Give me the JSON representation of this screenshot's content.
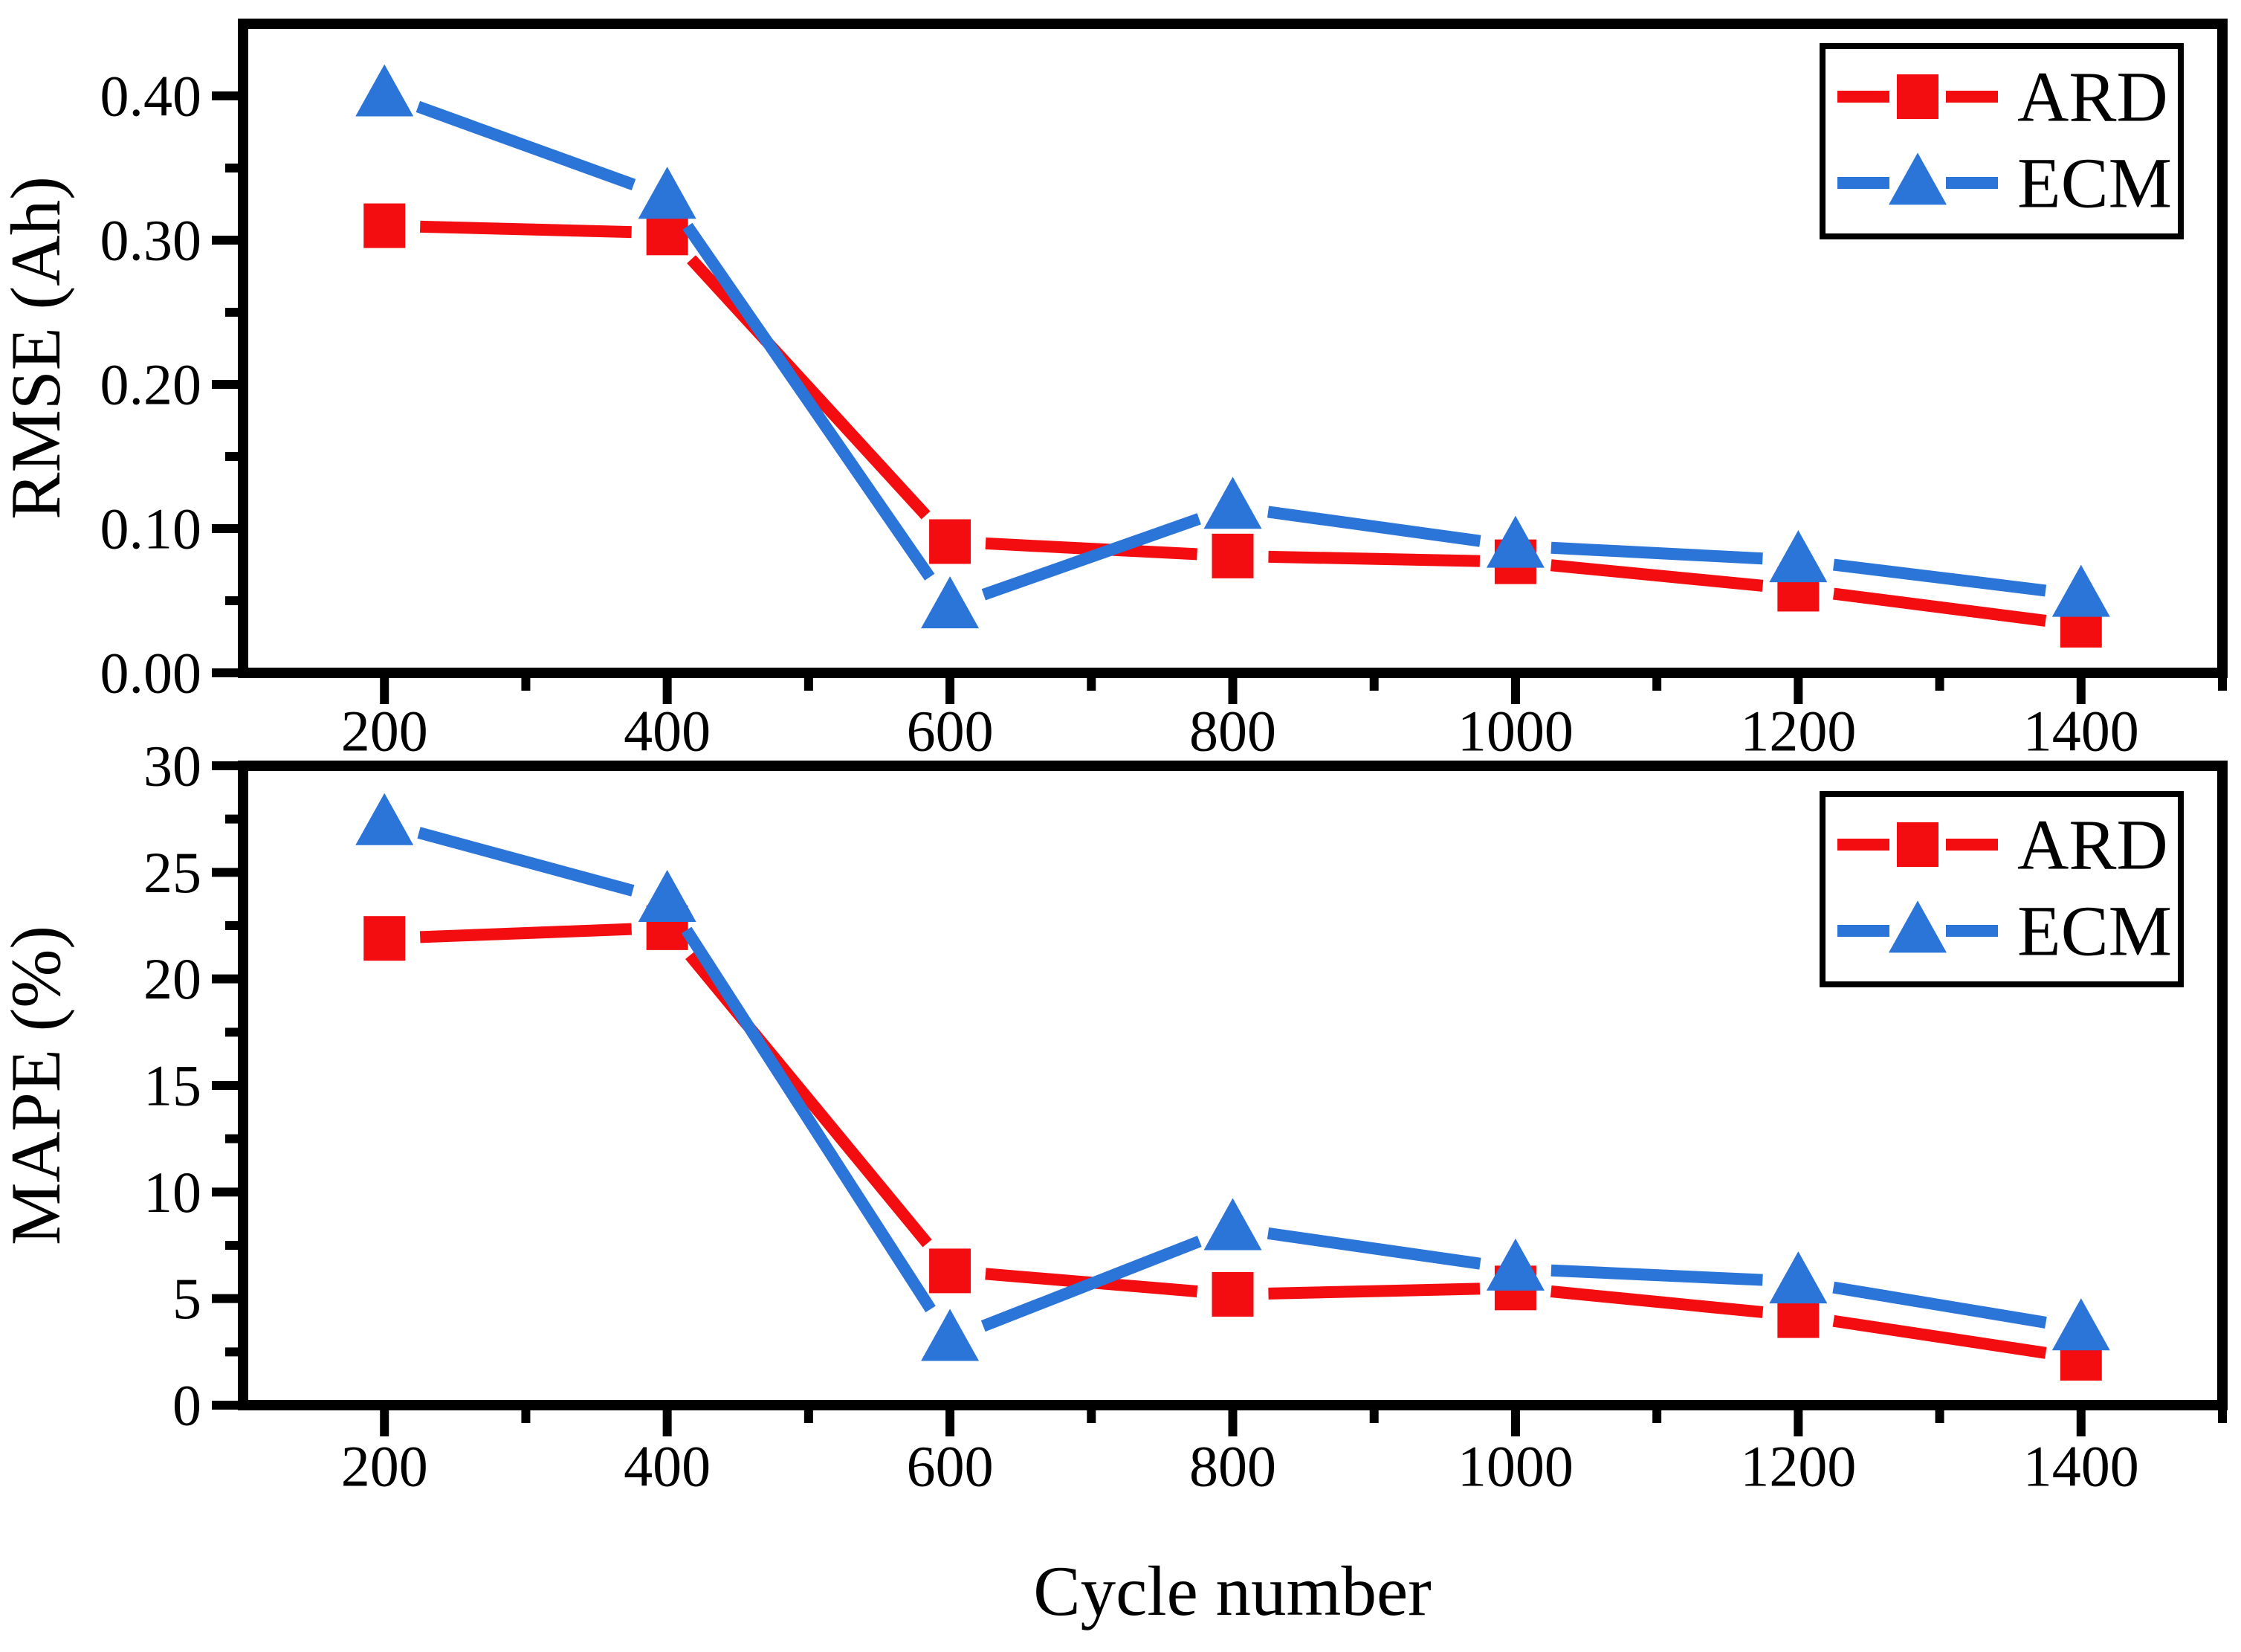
{
  "figure": {
    "xlabel": "Cycle number",
    "background": "#ffffff",
    "axis_color": "#000000"
  },
  "colors": {
    "ard": "#f30d10",
    "ecm": "#2b74d8",
    "axis": "#000000",
    "legend_border": "#000000"
  },
  "legend": {
    "entries": [
      "ARD",
      "ECM"
    ],
    "position": "top-right"
  },
  "chart_data": [
    {
      "type": "line",
      "title": "",
      "ylabel": "RMSE (Ah)",
      "xlabel": "",
      "grid": false,
      "legend_position": "top-right",
      "x": [
        200,
        400,
        600,
        800,
        1000,
        1200,
        1400
      ],
      "xlim": [
        100,
        1500
      ],
      "ylim": [
        0,
        0.45
      ],
      "xticks": {
        "values": [
          200,
          400,
          600,
          800,
          1000,
          1200,
          1400
        ],
        "labels": [
          "200",
          "400",
          "600",
          "800",
          "1000",
          "1200",
          "1400"
        ],
        "minor": [
          300,
          500,
          700,
          900,
          1100,
          1300,
          1500
        ]
      },
      "yticks": {
        "values": [
          0,
          0.1,
          0.2,
          0.3,
          0.4
        ],
        "labels": [
          "0.00",
          "0.10",
          "0.20",
          "0.30",
          "0.40"
        ],
        "minor": [
          0.05,
          0.15,
          0.25,
          0.35
        ]
      },
      "series": [
        {
          "name": "ARD",
          "color": "#f30d10",
          "marker": "square",
          "values": [
            0.31,
            0.305,
            0.091,
            0.081,
            0.077,
            0.058,
            0.033
          ]
        },
        {
          "name": "ECM",
          "color": "#2b74d8",
          "marker": "triangle",
          "values": [
            0.401,
            0.33,
            0.046,
            0.115,
            0.088,
            0.078,
            0.054
          ]
        }
      ]
    },
    {
      "type": "line",
      "title": "",
      "ylabel": "MAPE (%)",
      "xlabel": "Cycle number",
      "grid": false,
      "legend_position": "top-right",
      "x": [
        200,
        400,
        600,
        800,
        1000,
        1200,
        1400
      ],
      "xlim": [
        100,
        1500
      ],
      "ylim": [
        0,
        30
      ],
      "xticks": {
        "values": [
          200,
          400,
          600,
          800,
          1000,
          1200,
          1400
        ],
        "labels": [
          "200",
          "400",
          "600",
          "800",
          "1000",
          "1200",
          "1400"
        ],
        "minor": [
          300,
          500,
          700,
          900,
          1100,
          1300,
          1500
        ]
      },
      "yticks": {
        "values": [
          0,
          5,
          10,
          15,
          20,
          25,
          30
        ],
        "labels": [
          "0",
          "5",
          "10",
          "15",
          "20",
          "25",
          "30"
        ],
        "minor": [
          2.5,
          7.5,
          12.5,
          17.5,
          22.5,
          27.5
        ]
      },
      "series": [
        {
          "name": "ARD",
          "color": "#f30d10",
          "marker": "square",
          "values": [
            21.9,
            22.4,
            6.3,
            5.2,
            5.5,
            4.2,
            2.2
          ]
        },
        {
          "name": "ECM",
          "color": "#2b74d8",
          "marker": "triangle",
          "values": [
            27.3,
            23.7,
            3.1,
            8.3,
            6.4,
            5.8,
            3.6
          ]
        }
      ]
    }
  ]
}
